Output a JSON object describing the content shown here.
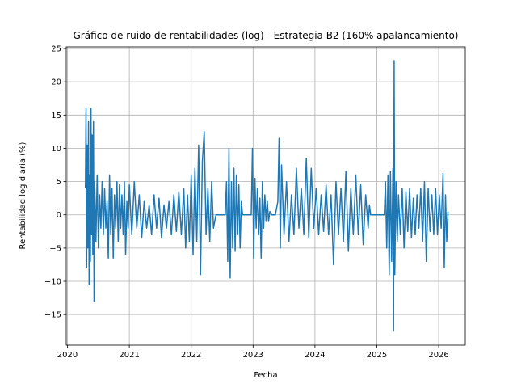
{
  "chart_data": {
    "type": "line",
    "title": "Gráfico de ruido de rentabilidades (log) - Estrategia B2 (160% apalancamiento)",
    "x_label": "Fecha",
    "y_label": "Rentabilidad log diaria (%)",
    "grid": true,
    "xlim": [
      2019.98,
      2026.43
    ],
    "ylim": [
      -19.6,
      25.25
    ],
    "xticks": [
      2020,
      2021,
      2022,
      2023,
      2024,
      2025,
      2026
    ],
    "yticks": [
      {
        "value": -15,
        "label": "−15"
      },
      {
        "value": -10,
        "label": "−10"
      },
      {
        "value": -5,
        "label": "−5"
      },
      0,
      5,
      10,
      15,
      20,
      25
    ],
    "x": [
      2020.29,
      2020.3,
      2020.31,
      2020.32,
      2020.33,
      2020.34,
      2020.35,
      2020.36,
      2020.37,
      2020.38,
      2020.39,
      2020.4,
      2020.41,
      2020.42,
      2020.43,
      2020.44,
      2020.46,
      2020.48,
      2020.5,
      2020.52,
      2020.54,
      2020.56,
      2020.58,
      2020.6,
      2020.62,
      2020.64,
      2020.66,
      2020.68,
      2020.7,
      2020.72,
      2020.74,
      2020.76,
      2020.78,
      2020.8,
      2020.82,
      2020.84,
      2020.86,
      2020.88,
      2020.9,
      2020.92,
      2020.94,
      2020.96,
      2020.98,
      2021.0,
      2021.04,
      2021.08,
      2021.12,
      2021.16,
      2021.2,
      2021.24,
      2021.28,
      2021.32,
      2021.36,
      2021.4,
      2021.44,
      2021.48,
      2021.52,
      2021.56,
      2021.6,
      2021.64,
      2021.68,
      2021.72,
      2021.76,
      2021.8,
      2021.84,
      2021.88,
      2021.91,
      2021.94,
      2021.97,
      2022.0,
      2022.03,
      2022.06,
      2022.09,
      2022.12,
      2022.15,
      2022.18,
      2022.21,
      2022.24,
      2022.27,
      2022.3,
      2022.33,
      2022.36,
      2022.4,
      2022.55,
      2022.57,
      2022.59,
      2022.61,
      2022.63,
      2022.65,
      2022.67,
      2022.69,
      2022.71,
      2022.73,
      2022.75,
      2022.77,
      2022.79,
      2022.81,
      2022.83,
      2022.97,
      2022.99,
      2023.01,
      2023.03,
      2023.05,
      2023.07,
      2023.09,
      2023.11,
      2023.13,
      2023.15,
      2023.17,
      2023.19,
      2023.21,
      2023.23,
      2023.25,
      2023.27,
      2023.3,
      2023.36,
      2023.4,
      2023.42,
      2023.44,
      2023.46,
      2023.5,
      2023.54,
      2023.58,
      2023.62,
      2023.66,
      2023.7,
      2023.74,
      2023.78,
      2023.82,
      2023.86,
      2023.9,
      2023.94,
      2023.98,
      2024.02,
      2024.06,
      2024.1,
      2024.14,
      2024.18,
      2024.22,
      2024.26,
      2024.3,
      2024.34,
      2024.38,
      2024.42,
      2024.46,
      2024.5,
      2024.54,
      2024.58,
      2024.62,
      2024.66,
      2024.7,
      2024.74,
      2024.78,
      2024.82,
      2024.86,
      2024.88,
      2024.9,
      2025.12,
      2025.14,
      2025.16,
      2025.18,
      2025.2,
      2025.22,
      2025.24,
      2025.26,
      2025.27,
      2025.28,
      2025.29,
      2025.31,
      2025.33,
      2025.35,
      2025.38,
      2025.41,
      2025.44,
      2025.47,
      2025.5,
      2025.53,
      2025.56,
      2025.59,
      2025.62,
      2025.65,
      2025.68,
      2025.71,
      2025.74,
      2025.77,
      2025.8,
      2025.83,
      2025.86,
      2025.89,
      2025.92,
      2025.95,
      2025.98,
      2026.01,
      2026.04,
      2026.07,
      2026.09,
      2026.11,
      2026.13,
      2026.15
    ],
    "series": [
      {
        "color": "#1f77b4",
        "values": [
          4,
          16,
          -8,
          10.5,
          -5,
          14,
          -10.5,
          6,
          -7,
          16,
          -3,
          12,
          -6,
          14,
          -13,
          5,
          -4,
          6,
          -5,
          3,
          -2,
          5,
          -3,
          4,
          -2,
          2,
          -6.5,
          6,
          -3,
          4,
          -6.5,
          3,
          -2,
          5,
          -4,
          4.5,
          -2,
          3,
          -3,
          5,
          -6,
          2,
          -2,
          4.5,
          -3,
          5,
          -2,
          3,
          -3.5,
          2,
          -2,
          1.5,
          -3,
          3,
          -2,
          2.5,
          -3.5,
          1.5,
          -2,
          2,
          -3,
          3,
          -2.5,
          3.5,
          -3,
          4,
          -5,
          3,
          -4,
          6,
          -6,
          7,
          -4,
          10.5,
          -9,
          8,
          12.5,
          -3,
          4,
          -4,
          5,
          -2,
          0,
          0,
          5,
          -7,
          10,
          -9.5,
          5,
          -5,
          7,
          -5.5,
          6,
          -3,
          4.5,
          -5,
          2,
          0,
          0,
          10,
          -6.5,
          5.5,
          -2,
          4,
          -3,
          2.5,
          -6.5,
          5,
          -2,
          3,
          -1,
          2,
          -1,
          0.5,
          0,
          0,
          2,
          11.5,
          -5,
          7.5,
          -3,
          5,
          -4,
          3,
          -3,
          7,
          -2,
          4,
          -3,
          8.5,
          -3.5,
          7,
          -2,
          4,
          -3,
          3,
          -2.5,
          4.5,
          -3,
          3,
          -7.5,
          5,
          -3,
          4,
          -4,
          6.5,
          -5.5,
          4,
          -3,
          6,
          -3,
          4.5,
          -4.5,
          3,
          -2,
          1.5,
          0,
          0,
          5,
          -5,
          6,
          -9,
          6.5,
          -7,
          7,
          -17.5,
          23.2,
          -9,
          5,
          -4,
          3,
          -3,
          4,
          -5,
          3.5,
          -2.5,
          4,
          -3.5,
          2.5,
          -3,
          3,
          -2,
          4,
          -4,
          5,
          -7,
          4,
          -2.5,
          3,
          -3,
          4,
          -3,
          3,
          -2,
          6.2,
          -8,
          3,
          -4,
          0.5
        ]
      }
    ]
  }
}
